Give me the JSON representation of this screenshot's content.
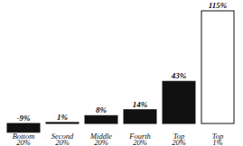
{
  "chart_data": {
    "type": "bar",
    "categories": [
      "Bottom 20%",
      "Second 20%",
      "Middle 20%",
      "Fourth 20%",
      "Top 20%",
      "Top 1%"
    ],
    "values": [
      -9,
      1,
      8,
      14,
      43,
      115
    ],
    "value_labels": [
      "-9%",
      "1%",
      "8%",
      "14%",
      "43%",
      "115%"
    ],
    "colors": [
      "#111111",
      "#111111",
      "#111111",
      "#111111",
      "#111111",
      "#ffffff"
    ],
    "data_labels": true,
    "tick_labels": "x",
    "grid": false
  }
}
